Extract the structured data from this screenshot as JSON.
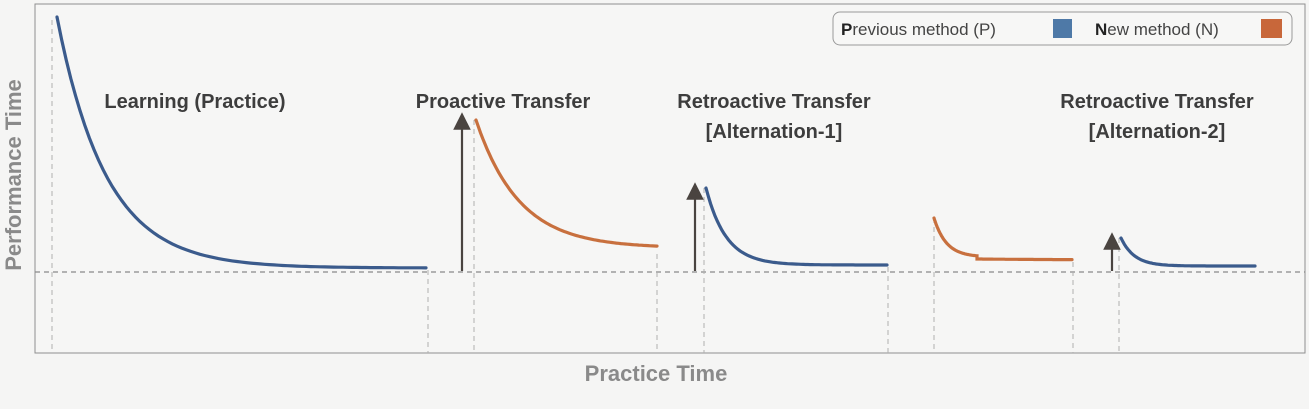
{
  "axes": {
    "xlabel": "Practice Time",
    "ylabel": "Performance Time"
  },
  "legend": {
    "previous": {
      "initial": "P",
      "rest": "revious method (P)",
      "color": "#4e79a7"
    },
    "new": {
      "initial": "N",
      "rest": "ew method (N)",
      "color": "#c8673a"
    }
  },
  "phases": [
    {
      "lines": [
        "Learning (Practice)"
      ]
    },
    {
      "lines": [
        "Proactive Transfer"
      ]
    },
    {
      "lines": [
        "Retroactive Transfer",
        "[Alternation-1]"
      ]
    },
    {
      "lines": [
        "Retroactive Transfer",
        "[Alternation-2]"
      ]
    }
  ],
  "colors": {
    "previous_curve": "#3b5b8c",
    "new_curve": "#c8703e",
    "arrow": "#4a4440",
    "frame": "#888888",
    "guides": "#aaaaaa"
  }
}
